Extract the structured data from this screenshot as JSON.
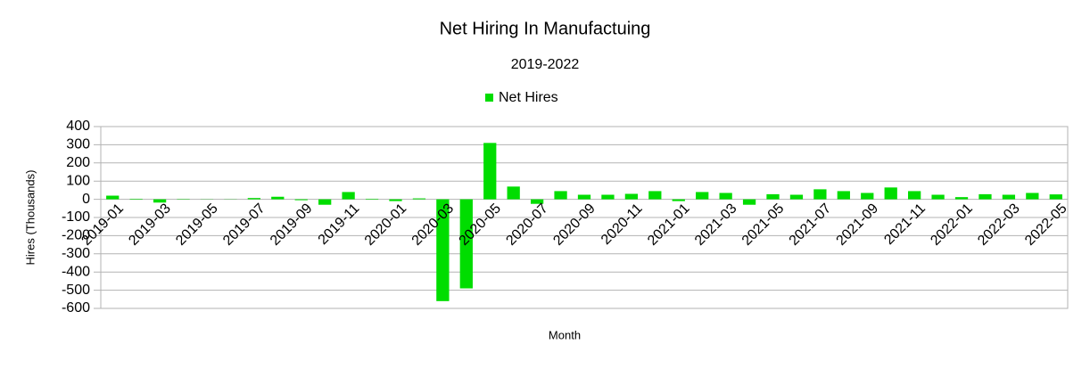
{
  "chart_data": {
    "type": "bar",
    "title": "Net Hiring In Manufactuing",
    "subtitle": "2019-2022",
    "x_label": "Month",
    "y_label": "Hires (Thousands)",
    "categories": [
      "2019-01",
      null,
      "2019-03",
      null,
      "2019-05",
      null,
      "2019-07",
      null,
      "2019-09",
      null,
      "2019-11",
      null,
      "2020-01",
      null,
      "2020-03",
      null,
      "2020-05",
      null,
      "2020-07",
      null,
      "2020-09",
      null,
      "2020-11",
      null,
      "2021-01",
      null,
      "2021-03",
      null,
      "2021-05",
      null,
      "2021-07",
      null,
      "2021-09",
      null,
      "2021-11",
      null,
      "2022-01",
      null,
      "2022-03",
      null,
      "2022-05"
    ],
    "series": [
      {
        "name": "Net Hires",
        "color": "#00dd00",
        "values": [
          20,
          3,
          -18,
          2,
          1,
          1,
          7,
          14,
          -5,
          -30,
          40,
          3,
          -10,
          5,
          -560,
          -490,
          310,
          70,
          -25,
          45,
          25,
          25,
          30,
          45,
          -10,
          40,
          35,
          -30,
          28,
          25,
          55,
          45,
          35,
          65,
          45,
          25,
          12,
          28,
          25,
          35,
          27
        ]
      }
    ],
    "ylim": [
      -600,
      400
    ],
    "yticks": [
      -600,
      -500,
      -400,
      -300,
      -200,
      -100,
      0,
      100,
      200,
      300,
      400
    ],
    "grid": true,
    "legend": "top"
  }
}
